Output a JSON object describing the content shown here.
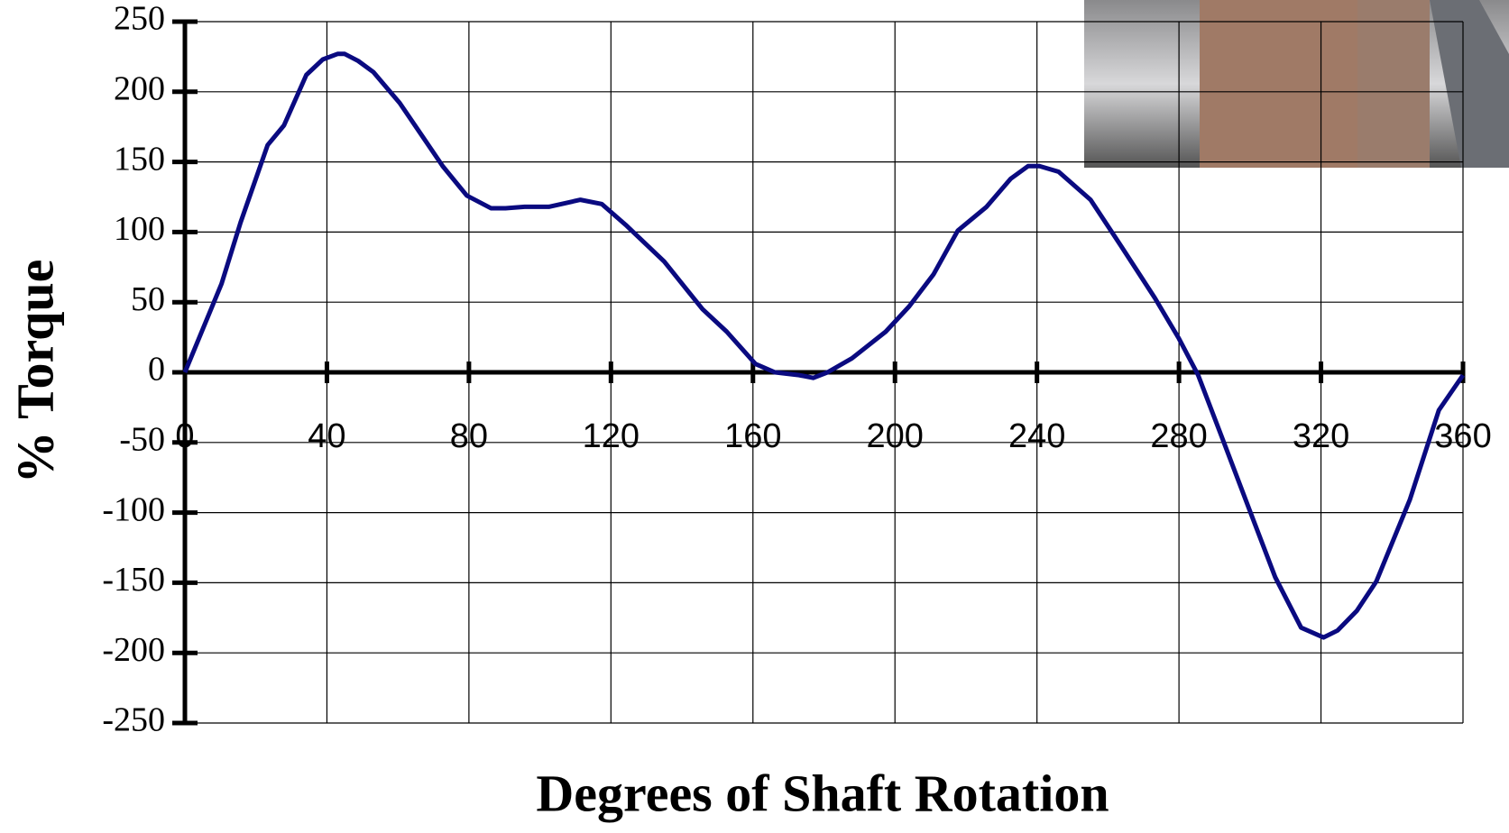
{
  "chart_data": {
    "type": "line",
    "x_label": "Degrees of Shaft Rotation",
    "y_label": "% Torque",
    "x": [
      0,
      10.3,
      15.7,
      23.3,
      27.9,
      34.2,
      38.8,
      43,
      45,
      48.8,
      53.1,
      60.5,
      66.7,
      72.6,
      79.4,
      86.2,
      90.3,
      95.7,
      102.5,
      111.4,
      117.4,
      124.2,
      135,
      145.8,
      152.6,
      160.7,
      166.2,
      173,
      177,
      181,
      187.9,
      197.4,
      204,
      210.9,
      217.7,
      225.8,
      232.6,
      237.5,
      240.7,
      246.1,
      255.1,
      263.7,
      273.2,
      280,
      285.4,
      292.2,
      300.3,
      307.1,
      314.4,
      320.7,
      324.7,
      330.1,
      335.6,
      345,
      353.2,
      360
    ],
    "series": [
      {
        "name": "Torque",
        "color": "#0a0a80",
        "values": [
          0,
          63,
          107,
          162,
          176,
          212,
          223,
          227,
          227,
          222,
          214,
          192,
          169,
          147,
          126,
          117,
          117,
          118,
          118,
          123,
          120,
          105,
          79,
          45,
          29,
          6,
          0,
          -2,
          -4,
          0,
          10,
          29,
          47,
          70,
          101,
          118,
          138,
          147,
          147,
          143,
          123,
          90,
          53,
          24,
          -2,
          -47,
          -101,
          -146,
          -182,
          -189,
          -184,
          -170,
          -149,
          -91,
          -27,
          -2
        ]
      }
    ],
    "xlim": [
      0,
      360
    ],
    "xticks": [
      0,
      40,
      80,
      120,
      160,
      200,
      240,
      280,
      320,
      360
    ],
    "ylim": [
      -250,
      250
    ],
    "yticks": [
      -250,
      -200,
      -150,
      -100,
      -50,
      0,
      50,
      100,
      150,
      200,
      250
    ],
    "grid": true
  }
}
